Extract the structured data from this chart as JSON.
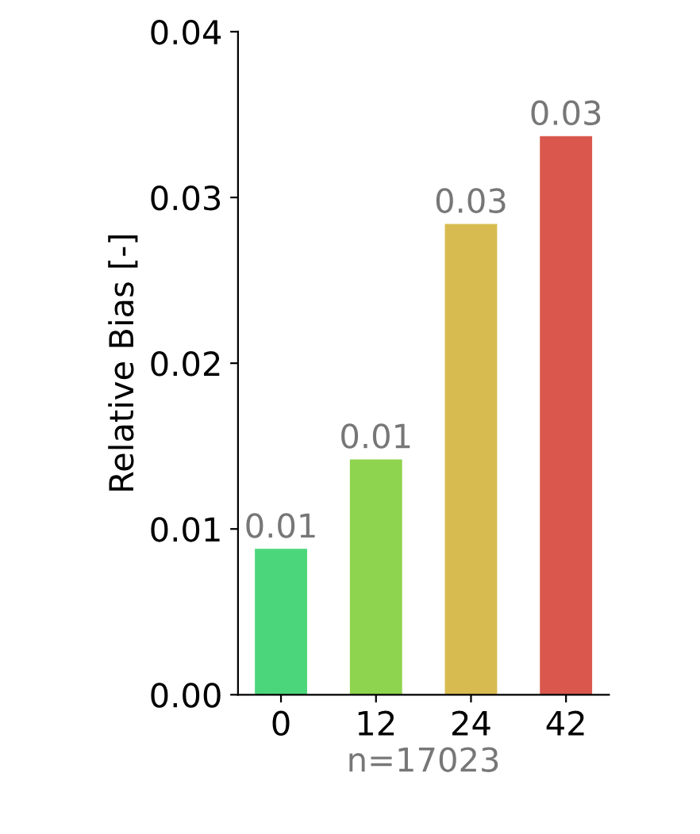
{
  "chart_data": {
    "type": "bar",
    "categories": [
      "0",
      "12",
      "24",
      "42"
    ],
    "values": [
      0.0088,
      0.0142,
      0.0284,
      0.0337
    ],
    "colors": [
      "#4cd67c",
      "#8ed44e",
      "#d8bb50",
      "#d9574c"
    ],
    "value_labels": [
      "0.01",
      "0.01",
      "0.03",
      "0.03"
    ],
    "ylabel": "Relative Bias [-]",
    "xlabel": "n=17023",
    "ylim": [
      0,
      0.04
    ],
    "yticks": [
      {
        "value": 0,
        "label": "0.00"
      },
      {
        "value": 0.01,
        "label": "0.01"
      },
      {
        "value": 0.02,
        "label": "0.02"
      },
      {
        "value": 0.03,
        "label": "0.03"
      },
      {
        "value": 0.04,
        "label": "0.04"
      }
    ],
    "grid": false
  }
}
